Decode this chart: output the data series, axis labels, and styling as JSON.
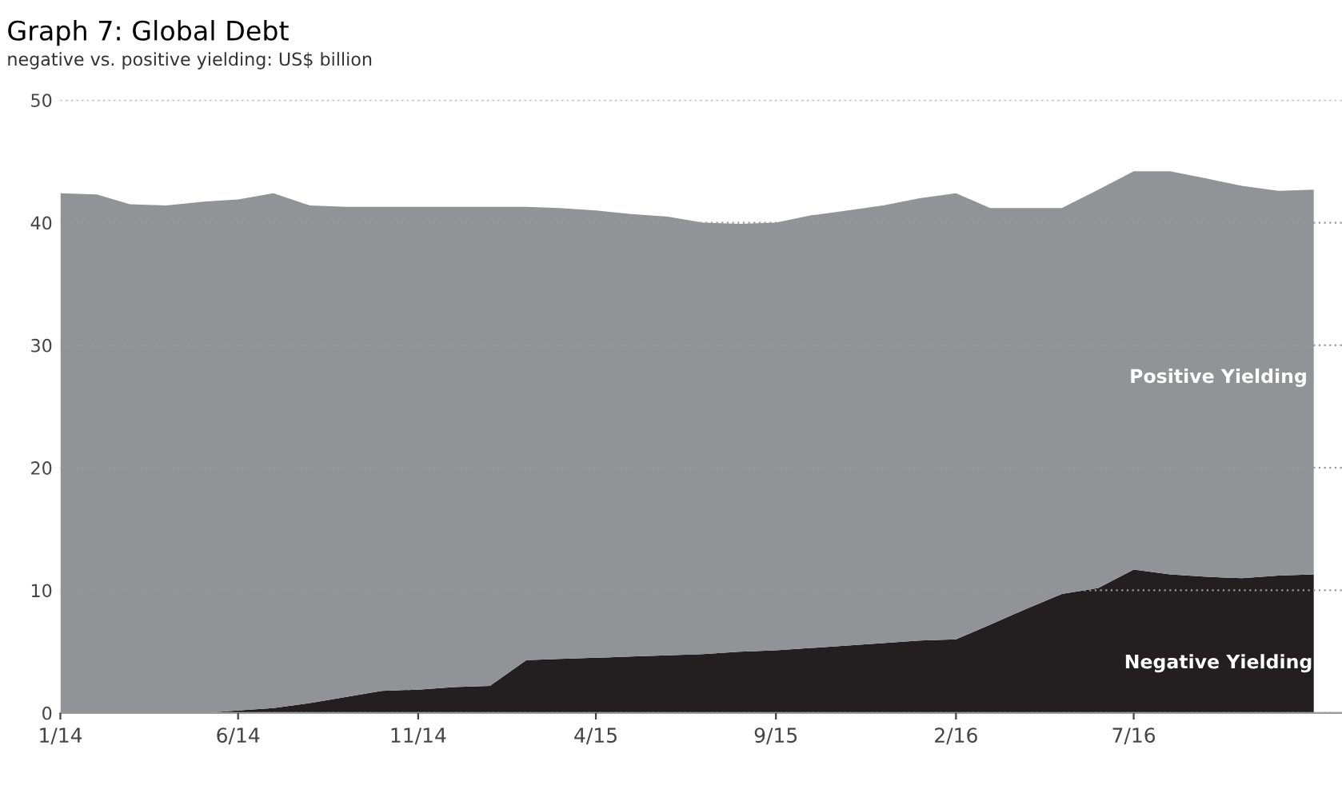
{
  "chart_data": {
    "type": "area",
    "stacked": true,
    "title": "Graph 7: Global Debt",
    "subtitle": "negative vs. positive yielding: US$ billion",
    "x": [
      "2014-01",
      "2014-02",
      "2014-03",
      "2014-04",
      "2014-05",
      "2014-06",
      "2014-07",
      "2014-08",
      "2014-09",
      "2014-10",
      "2014-11",
      "2014-12",
      "2015-01",
      "2015-02",
      "2015-03",
      "2015-04",
      "2015-05",
      "2015-06",
      "2015-07",
      "2015-08",
      "2015-09",
      "2015-10",
      "2015-11",
      "2015-12",
      "2016-01",
      "2016-02",
      "2016-03",
      "2016-04",
      "2016-05",
      "2016-06",
      "2016-07",
      "2016-08",
      "2016-09",
      "2016-10",
      "2016-11",
      "2016-12"
    ],
    "series": [
      {
        "name": "Negative Yielding",
        "color": "#231f20",
        "values": [
          0,
          0,
          0,
          0,
          0,
          0.2,
          0.4,
          0.8,
          1.3,
          1.8,
          1.9,
          2.1,
          2.2,
          4.3,
          4.4,
          4.5,
          4.6,
          4.7,
          4.8,
          5.0,
          5.1,
          5.3,
          5.5,
          5.7,
          5.9,
          6.0,
          7.2,
          8.5,
          9.7,
          10.2,
          11.7,
          11.3,
          11.1,
          11.0,
          11.2,
          11.3
        ]
      },
      {
        "name": "Positive Yielding",
        "color": "#929396",
        "values": [
          42.4,
          42.3,
          41.5,
          41.4,
          41.7,
          41.7,
          42.0,
          40.6,
          40.0,
          39.5,
          39.4,
          39.2,
          39.1,
          37.0,
          36.8,
          36.5,
          36.1,
          35.8,
          35.2,
          34.9,
          34.9,
          35.3,
          35.5,
          35.7,
          36.1,
          36.4,
          34.0,
          32.7,
          31.5,
          32.5,
          32.5,
          32.9,
          32.5,
          32.0,
          31.4,
          31.4
        ]
      }
    ],
    "xlim": [
      "2014-01-01",
      "2016-12-25"
    ],
    "xticks": [
      {
        "value": "2014-01",
        "label": "1/14"
      },
      {
        "value": "2014-06",
        "label": "6/14"
      },
      {
        "value": "2014-11",
        "label": "11/14"
      },
      {
        "value": "2015-04",
        "label": "4/15"
      },
      {
        "value": "2015-09",
        "label": "9/15"
      },
      {
        "value": "2016-02",
        "label": "2/16"
      },
      {
        "value": "2016-07",
        "label": "7/16"
      }
    ],
    "ylim": [
      0,
      50
    ],
    "yticks": [
      0,
      10,
      20,
      30,
      40,
      50
    ],
    "grid": "y",
    "legend": false
  }
}
